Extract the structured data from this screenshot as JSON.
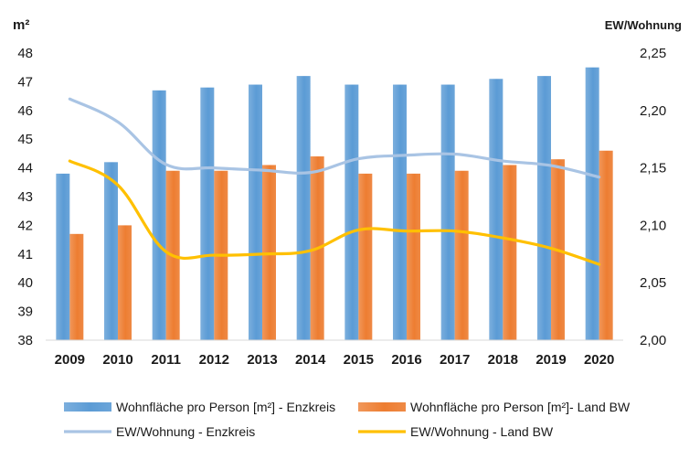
{
  "chart_data": {
    "type": "bar",
    "title": "",
    "categories": [
      "2009",
      "2010",
      "2011",
      "2012",
      "2013",
      "2014",
      "2015",
      "2016",
      "2017",
      "2018",
      "2019",
      "2020"
    ],
    "y_left": {
      "label": "m²",
      "min": 38,
      "max": 48,
      "step": 1,
      "ticks": [
        "38",
        "39",
        "40",
        "41",
        "42",
        "43",
        "44",
        "45",
        "46",
        "47",
        "48"
      ]
    },
    "y_right": {
      "label": "EW/Wohnung",
      "min": 2.0,
      "max": 2.25,
      "step": 0.05,
      "ticks": [
        "2,00",
        "2,05",
        "2,10",
        "2,15",
        "2,20",
        "2,25"
      ]
    },
    "grid": false,
    "legend_position": "bottom",
    "series": [
      {
        "name": "Wohnfläche pro Person [m²] - Enzkreis",
        "kind": "bar",
        "axis": "left",
        "color": "#5b9bd5",
        "values": [
          43.8,
          44.2,
          46.7,
          46.8,
          46.9,
          47.2,
          46.9,
          46.9,
          46.9,
          47.1,
          47.2,
          47.5
        ]
      },
      {
        "name": "Wohnfläche pro Person [m²]- Land BW",
        "kind": "bar",
        "axis": "left",
        "color": "#ed7d31",
        "values": [
          41.7,
          42.0,
          43.9,
          43.9,
          44.1,
          44.4,
          43.8,
          43.8,
          43.9,
          44.1,
          44.3,
          44.6
        ]
      },
      {
        "name": "EW/Wohnung - Enzkreis",
        "kind": "line",
        "axis": "right",
        "color": "#a9c4e4",
        "values": [
          2.21,
          2.19,
          2.153,
          2.15,
          2.148,
          2.146,
          2.158,
          2.161,
          2.162,
          2.156,
          2.152,
          2.142
        ]
      },
      {
        "name": "EW/Wohnung - Land BW",
        "kind": "line",
        "axis": "right",
        "color": "#ffc000",
        "values": [
          2.156,
          2.135,
          2.077,
          2.074,
          2.075,
          2.078,
          2.096,
          2.095,
          2.095,
          2.089,
          2.08,
          2.066
        ]
      }
    ]
  }
}
